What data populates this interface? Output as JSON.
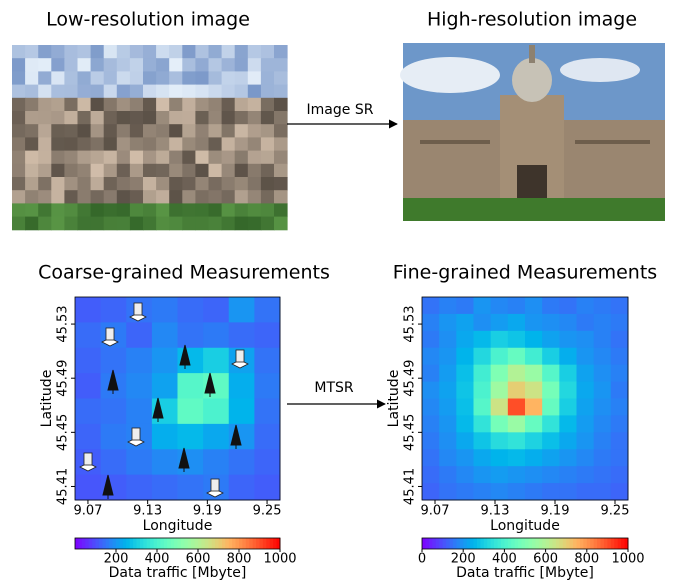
{
  "top": {
    "left_title": "Low-resolution image",
    "right_title": "High-resolution image",
    "arrow_label": "Image SR"
  },
  "bottom": {
    "arrow_label": "MTSR"
  },
  "chart_data": [
    {
      "type": "heatmap",
      "title": "Coarse-grained  Measurements",
      "xlabel": "Longitude",
      "ylabel": "Latitude",
      "xlim": [
        9.057,
        9.263
      ],
      "xticks": [
        9.07,
        9.13,
        9.19,
        9.25
      ],
      "ylim": [
        45.4,
        45.55
      ],
      "yticks": [
        45.41,
        45.45,
        45.49,
        45.53
      ],
      "clim": [
        0,
        1000
      ],
      "cticks": [
        200,
        400,
        600,
        800,
        1000
      ],
      "clabel": "Data traffic [Mbyte]",
      "values": [
        [
          120,
          130,
          150,
          160,
          140,
          130,
          200,
          150
        ],
        [
          140,
          160,
          130,
          180,
          150,
          160,
          140,
          130
        ],
        [
          130,
          150,
          170,
          200,
          260,
          300,
          220,
          150
        ],
        [
          120,
          160,
          180,
          220,
          420,
          440,
          240,
          160
        ],
        [
          140,
          150,
          170,
          300,
          440,
          400,
          250,
          150
        ],
        [
          130,
          160,
          170,
          240,
          260,
          230,
          200,
          140
        ],
        [
          120,
          140,
          160,
          180,
          190,
          170,
          150,
          130
        ],
        [
          110,
          120,
          130,
          140,
          150,
          160,
          130,
          120
        ]
      ]
    },
    {
      "type": "heatmap",
      "title": "Fine-grained Measurements",
      "xlabel": "Longitude",
      "ylabel": "Latitude",
      "xlim": [
        9.057,
        9.263
      ],
      "xticks": [
        9.07,
        9.13,
        9.19,
        9.25
      ],
      "ylim": [
        45.4,
        45.55
      ],
      "yticks": [
        45.41,
        45.45,
        45.49,
        45.53
      ],
      "clim": [
        0,
        1000
      ],
      "cticks": [
        0,
        200,
        400,
        600,
        800,
        1000
      ],
      "clabel": "Data traffic [Mbyte]",
      "values": [
        [
          150,
          170,
          160,
          200,
          180,
          170,
          190,
          160,
          150,
          170,
          160,
          150
        ],
        [
          170,
          200,
          220,
          190,
          210,
          230,
          200,
          190,
          180,
          160,
          170,
          160
        ],
        [
          160,
          190,
          230,
          260,
          300,
          280,
          250,
          220,
          200,
          190,
          170,
          150
        ],
        [
          180,
          200,
          250,
          320,
          400,
          450,
          380,
          300,
          240,
          200,
          180,
          160
        ],
        [
          170,
          210,
          270,
          380,
          500,
          600,
          550,
          420,
          300,
          220,
          190,
          170
        ],
        [
          190,
          220,
          280,
          400,
          560,
          700,
          650,
          480,
          320,
          230,
          200,
          160
        ],
        [
          180,
          210,
          270,
          420,
          650,
          900,
          750,
          450,
          300,
          220,
          190,
          170
        ],
        [
          170,
          200,
          260,
          350,
          480,
          550,
          450,
          350,
          260,
          210,
          180,
          160
        ],
        [
          160,
          190,
          230,
          280,
          330,
          350,
          310,
          270,
          230,
          200,
          170,
          150
        ],
        [
          150,
          180,
          200,
          230,
          250,
          260,
          240,
          220,
          200,
          180,
          160,
          150
        ],
        [
          140,
          160,
          180,
          200,
          210,
          200,
          190,
          180,
          170,
          160,
          150,
          140
        ],
        [
          130,
          150,
          160,
          170,
          180,
          170,
          160,
          150,
          150,
          140,
          140,
          130
        ]
      ]
    }
  ]
}
